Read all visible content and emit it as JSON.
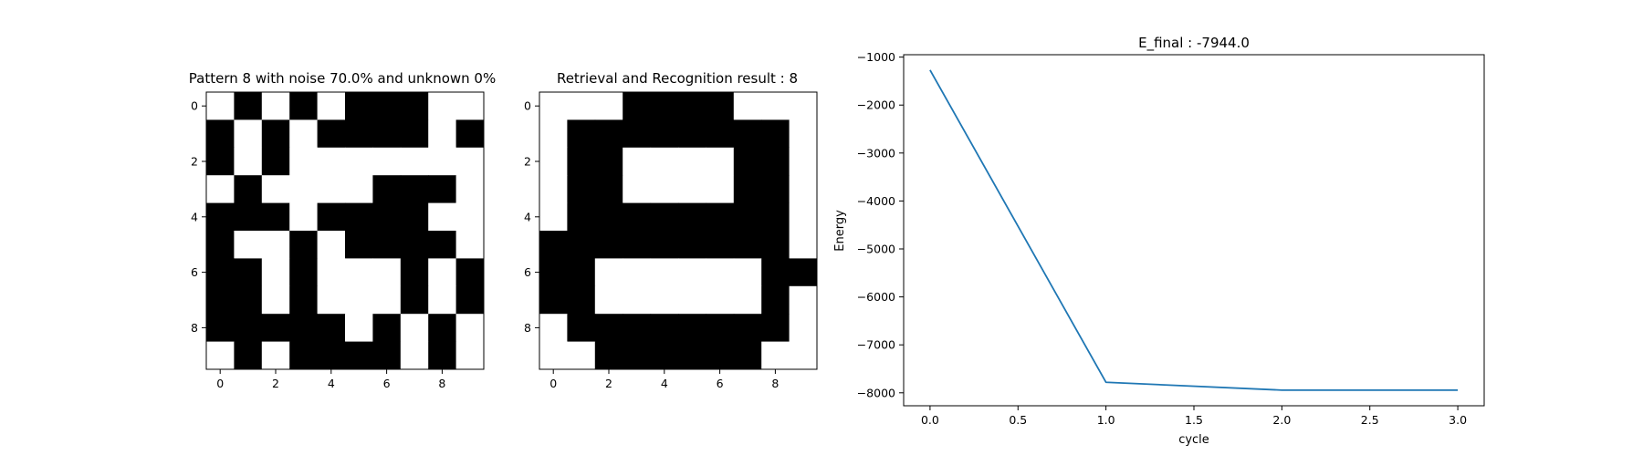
{
  "chart_data": [
    {
      "type": "heatmap",
      "title": "Pattern 8 with noise 70.0% and unknown 0%",
      "xlabel": "",
      "ylabel": "",
      "colors": {
        "0": "#ffffff",
        "1": "#000000"
      },
      "x_ticks": [
        "0",
        "2",
        "4",
        "6",
        "8"
      ],
      "y_ticks": [
        "0",
        "2",
        "4",
        "6",
        "8"
      ],
      "grid": [
        [
          0,
          1,
          0,
          1,
          0,
          1,
          1,
          1,
          0,
          0
        ],
        [
          1,
          0,
          1,
          0,
          1,
          1,
          1,
          1,
          0,
          1
        ],
        [
          1,
          0,
          1,
          0,
          0,
          0,
          0,
          0,
          0,
          0
        ],
        [
          0,
          1,
          0,
          0,
          0,
          0,
          1,
          1,
          1,
          0
        ],
        [
          1,
          1,
          1,
          0,
          1,
          1,
          1,
          1,
          0,
          0
        ],
        [
          1,
          0,
          0,
          1,
          0,
          1,
          1,
          1,
          1,
          0
        ],
        [
          1,
          1,
          0,
          1,
          0,
          0,
          0,
          1,
          0,
          1
        ],
        [
          1,
          1,
          0,
          1,
          0,
          0,
          0,
          1,
          0,
          1
        ],
        [
          1,
          1,
          1,
          1,
          1,
          0,
          1,
          0,
          1,
          0
        ],
        [
          0,
          1,
          0,
          1,
          1,
          1,
          1,
          0,
          1,
          0
        ]
      ]
    },
    {
      "type": "heatmap",
      "title": "Retrieval and Recognition result : 8",
      "xlabel": "",
      "ylabel": "",
      "colors": {
        "0": "#ffffff",
        "1": "#000000"
      },
      "x_ticks": [
        "0",
        "2",
        "4",
        "6",
        "8"
      ],
      "y_ticks": [
        "0",
        "2",
        "4",
        "6",
        "8"
      ],
      "grid": [
        [
          0,
          0,
          0,
          1,
          1,
          1,
          1,
          0,
          0,
          0
        ],
        [
          0,
          1,
          1,
          1,
          1,
          1,
          1,
          1,
          1,
          0
        ],
        [
          0,
          1,
          1,
          0,
          0,
          0,
          0,
          1,
          1,
          0
        ],
        [
          0,
          1,
          1,
          0,
          0,
          0,
          0,
          1,
          1,
          0
        ],
        [
          0,
          1,
          1,
          1,
          1,
          1,
          1,
          1,
          1,
          0
        ],
        [
          1,
          1,
          1,
          1,
          1,
          1,
          1,
          1,
          1,
          0
        ],
        [
          1,
          1,
          0,
          0,
          0,
          0,
          0,
          0,
          1,
          1
        ],
        [
          1,
          1,
          0,
          0,
          0,
          0,
          0,
          0,
          1,
          0
        ],
        [
          0,
          1,
          1,
          1,
          1,
          1,
          1,
          1,
          1,
          0
        ],
        [
          0,
          0,
          1,
          1,
          1,
          1,
          1,
          1,
          0,
          0
        ]
      ]
    },
    {
      "type": "line",
      "title": "E_final : -7944.0",
      "xlabel": "cycle",
      "ylabel": "Energy",
      "x": [
        0.0,
        1.0,
        2.0,
        3.0
      ],
      "series": [
        {
          "values": [
            -1270,
            -7780,
            -7944,
            -7944
          ],
          "color": "#1f77b4"
        }
      ],
      "xlim": [
        -0.15,
        3.15
      ],
      "ylim": [
        -8270,
        -950
      ],
      "x_ticks": [
        {
          "value": 0.0,
          "label": "0.0"
        },
        {
          "value": 0.5,
          "label": "0.5"
        },
        {
          "value": 1.0,
          "label": "1.0"
        },
        {
          "value": 1.5,
          "label": "1.5"
        },
        {
          "value": 2.0,
          "label": "2.0"
        },
        {
          "value": 2.5,
          "label": "2.5"
        },
        {
          "value": 3.0,
          "label": "3.0"
        }
      ],
      "y_ticks": [
        {
          "value": -1000,
          "label": "−1000"
        },
        {
          "value": -2000,
          "label": "−2000"
        },
        {
          "value": -3000,
          "label": "−3000"
        },
        {
          "value": -4000,
          "label": "−4000"
        },
        {
          "value": -5000,
          "label": "−5000"
        },
        {
          "value": -6000,
          "label": "−6000"
        },
        {
          "value": -7000,
          "label": "−7000"
        },
        {
          "value": -8000,
          "label": "−8000"
        }
      ],
      "grid": false
    }
  ]
}
